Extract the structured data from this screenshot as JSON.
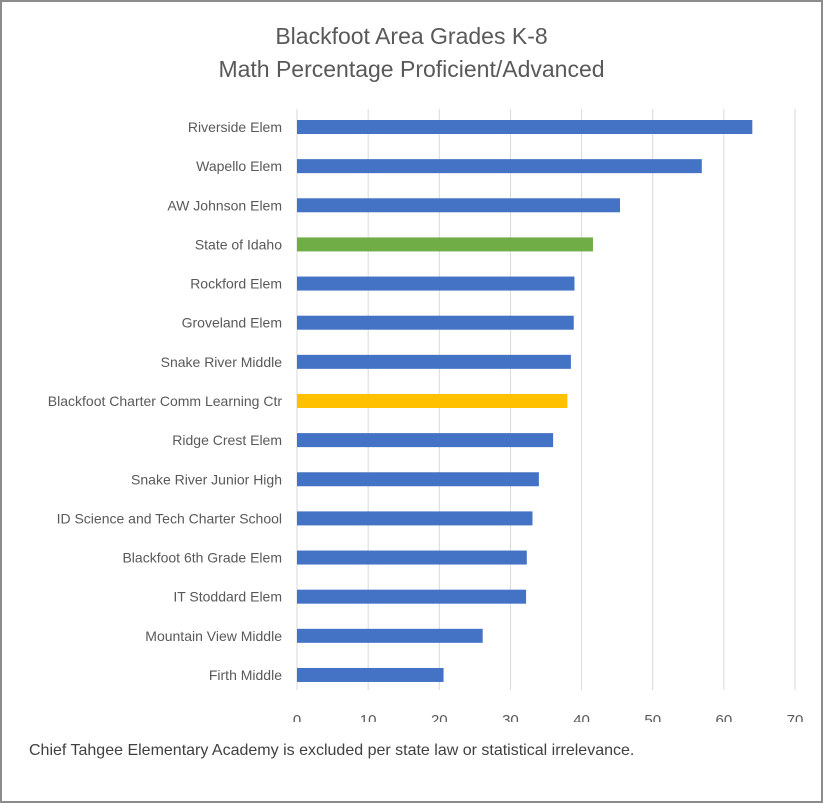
{
  "chart_data": {
    "type": "bar",
    "orientation": "horizontal",
    "title_line1": "Blackfoot Area Grades K-8",
    "title_line2": "Math Percentage Proficient/Advanced",
    "categories": [
      "Riverside Elem",
      "Wapello Elem",
      "AW Johnson Elem",
      "State of Idaho",
      "Rockford Elem",
      "Groveland Elem",
      "Snake River Middle",
      "Blackfoot Charter Comm Learning Ctr",
      "Ridge Crest Elem",
      "Snake River Junior High",
      "ID Science and Tech Charter School",
      "Blackfoot 6th Grade Elem",
      "IT Stoddard Elem",
      "Mountain View Middle",
      "Firth Middle"
    ],
    "values": [
      64.0,
      56.9,
      45.4,
      41.6,
      39.0,
      38.9,
      38.5,
      38.0,
      36.0,
      34.0,
      33.1,
      32.3,
      32.2,
      26.1,
      20.6
    ],
    "bar_colors": [
      "#4472c4",
      "#4472c4",
      "#4472c4",
      "#70ad47",
      "#4472c4",
      "#4472c4",
      "#4472c4",
      "#ffc000",
      "#4472c4",
      "#4472c4",
      "#4472c4",
      "#4472c4",
      "#4472c4",
      "#4472c4",
      "#4472c4"
    ],
    "xlim": [
      0,
      70
    ],
    "xticks": [
      "0",
      "10",
      "20",
      "30",
      "40",
      "50",
      "60",
      "70"
    ],
    "grid": true,
    "legend": "none"
  },
  "footnote": "Chief Tahgee Elementary Academy is excluded per state law or statistical irrelevance.",
  "colors": {
    "default_bar": "#4472c4",
    "state_bar": "#70ad47",
    "charter_bar": "#ffc000",
    "gridline": "#d9d9d9",
    "text": "#595959"
  }
}
